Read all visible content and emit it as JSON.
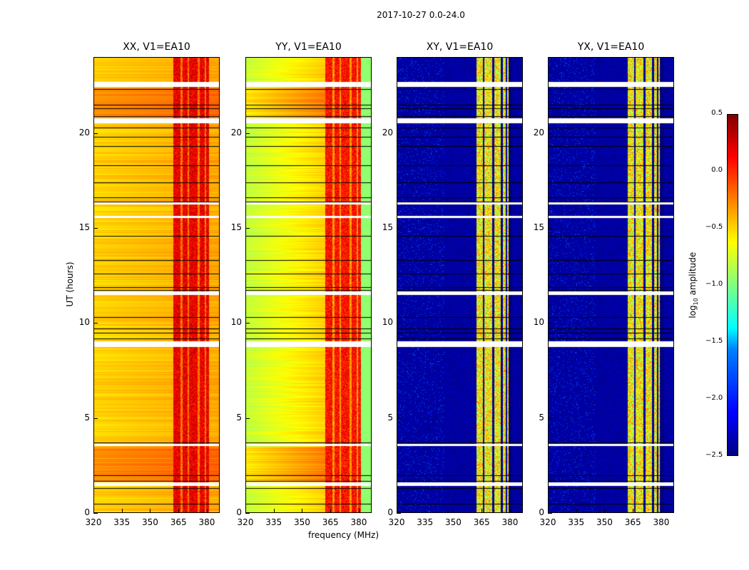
{
  "chart_data": {
    "type": "heatmap",
    "title": "2017-10-27 0.0-24.0",
    "xlabel": "frequency (MHz)",
    "ylabel": "UT (hours)",
    "xlim": [
      320,
      386.8
    ],
    "ylim": [
      0,
      24
    ],
    "xticks": [
      "320",
      "335",
      "350",
      "365",
      "380"
    ],
    "yticks": [
      "0",
      "5",
      "10",
      "15",
      "20"
    ],
    "panels": [
      {
        "title": "XX, V1=EA10",
        "base": -0.5,
        "band": [
          362,
          381
        ],
        "band_level": 0.1,
        "type": "auto"
      },
      {
        "title": "YY, V1=EA10",
        "base": -0.8,
        "band": [
          362,
          381
        ],
        "band_level": 0.0,
        "type": "auto"
      },
      {
        "title": "XY, V1=EA10",
        "base": -2.5,
        "band": [
          362,
          381
        ],
        "band_level": -0.7,
        "type": "cross"
      },
      {
        "title": "YX, V1=EA10",
        "base": -2.5,
        "band": [
          362,
          381
        ],
        "band_level": -0.7,
        "type": "cross"
      }
    ],
    "flagged_hours": [
      [
        1.45,
        1.62
      ],
      [
        3.55,
        3.65
      ],
      [
        8.75,
        9.05
      ],
      [
        11.5,
        11.7
      ],
      [
        15.55,
        15.65
      ],
      [
        16.25,
        16.35
      ],
      [
        20.55,
        20.8
      ],
      [
        22.45,
        22.7
      ]
    ],
    "colorbar": {
      "label": "log10 amplitude",
      "label_main": "log",
      "label_sub": "10",
      "label_rest": " amplitude",
      "range": [
        -2.5,
        0.5
      ],
      "ticks": [
        "0.5",
        "0.0",
        "−0.5",
        "−1.0",
        "−1.5",
        "−2.0",
        "−2.5"
      ],
      "colormap": "jet"
    }
  }
}
